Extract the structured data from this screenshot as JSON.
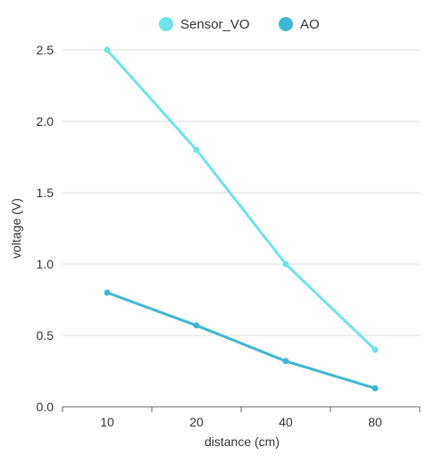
{
  "chart_data": {
    "type": "line",
    "categories": [
      "10",
      "20",
      "40",
      "80"
    ],
    "series": [
      {
        "name": "Sensor_VO",
        "values": [
          2.5,
          1.8,
          1.0,
          0.4
        ],
        "color": "#6fe3e6"
      },
      {
        "name": "AO",
        "values": [
          0.8,
          0.57,
          0.32,
          0.13
        ],
        "color": "#3fb6d2"
      }
    ],
    "xlabel": "distance (cm)",
    "ylabel": "voltage (V)",
    "ylim": [
      0,
      2.5
    ],
    "yticks": [
      "0.0",
      "0.5",
      "1.0",
      "1.5",
      "2.0",
      "2.5"
    ],
    "grid": true,
    "legend_position": "top-center"
  }
}
